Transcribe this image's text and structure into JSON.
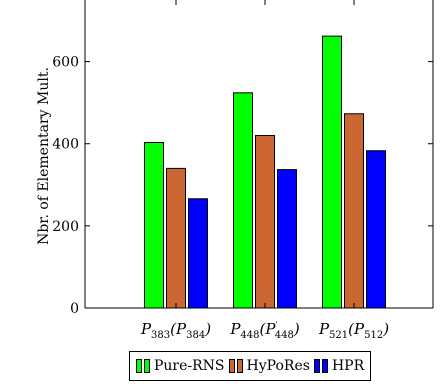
{
  "chart_data": {
    "type": "bar",
    "title": "",
    "xlabel": "",
    "ylabel": "Nbr. of Elementary Mult.",
    "ylim": [
      0,
      750
    ],
    "yticks": [
      0,
      200,
      400,
      600
    ],
    "grid": false,
    "legend_position": "bottom",
    "categories": [
      {
        "main": "P",
        "sub": "383",
        "paren_main": "P",
        "paren_sub": "384",
        "prime": ""
      },
      {
        "main": "P",
        "sub": "448",
        "paren_main": "P",
        "paren_sub": "448",
        "prime": "′"
      },
      {
        "main": "P",
        "sub": "521",
        "paren_main": "P",
        "paren_sub": "512",
        "prime": ""
      }
    ],
    "series": [
      {
        "name": "Pure-RNS",
        "color": "#00ff00",
        "values": [
          403,
          524,
          662
        ]
      },
      {
        "name": "HyPoRes",
        "color": "#cc6633",
        "values": [
          340,
          420,
          473
        ]
      },
      {
        "name": "HPR",
        "color": "#0000ff",
        "values": [
          266,
          337,
          383
        ]
      }
    ]
  }
}
